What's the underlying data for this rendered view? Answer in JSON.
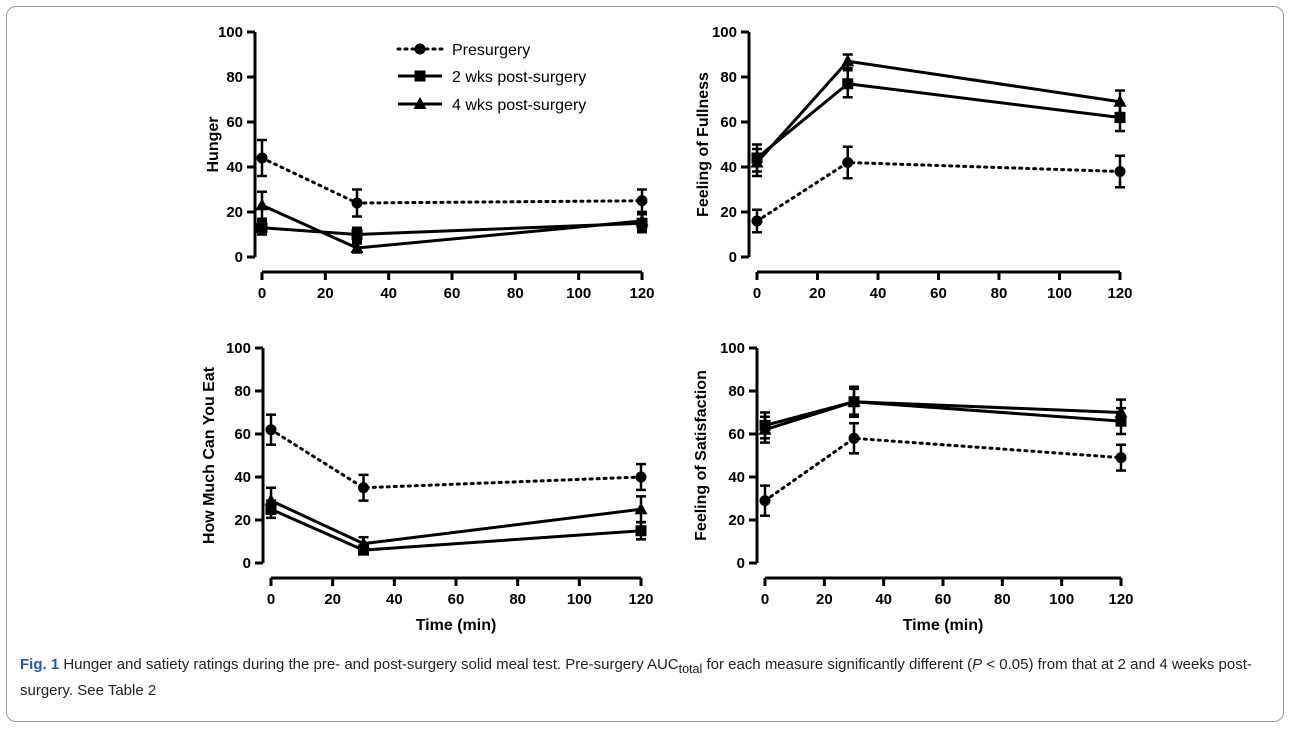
{
  "chart_data": [
    {
      "type": "line",
      "ylabel": "Hunger",
      "xlabel": "",
      "x": [
        0,
        30,
        120
      ],
      "xlim": [
        0,
        120
      ],
      "ylim": [
        0,
        100
      ],
      "xticks": [
        "0",
        "20",
        "40",
        "60",
        "80",
        "100",
        "120"
      ],
      "yticks": [
        "0",
        "20",
        "40",
        "60",
        "80",
        "100"
      ],
      "legend_position": "top-right",
      "series": [
        {
          "name": "Presurgery",
          "marker": "circle",
          "style": "dotted",
          "values": [
            44,
            24,
            25
          ],
          "errors": [
            8,
            6,
            5
          ]
        },
        {
          "name": "2 wks post-surgery",
          "marker": "square",
          "style": "solid",
          "values": [
            13,
            10,
            15
          ],
          "errors": [
            3,
            3,
            4
          ]
        },
        {
          "name": "4 wks post-surgery",
          "marker": "triangle",
          "style": "solid",
          "values": [
            23,
            4,
            16
          ],
          "errors": [
            6,
            2,
            4
          ]
        }
      ]
    },
    {
      "type": "line",
      "ylabel": "Feeling of Fullness",
      "xlabel": "",
      "x": [
        0,
        30,
        120
      ],
      "xlim": [
        0,
        120
      ],
      "ylim": [
        0,
        100
      ],
      "xticks": [
        "0",
        "20",
        "40",
        "60",
        "80",
        "100",
        "120"
      ],
      "yticks": [
        "0",
        "20",
        "40",
        "60",
        "80",
        "100"
      ],
      "series": [
        {
          "name": "Presurgery",
          "marker": "circle",
          "style": "dotted",
          "values": [
            16,
            42,
            38
          ],
          "errors": [
            5,
            7,
            7
          ]
        },
        {
          "name": "2 wks post-surgery",
          "marker": "square",
          "style": "solid",
          "values": [
            44,
            77,
            62
          ],
          "errors": [
            6,
            6,
            6
          ]
        },
        {
          "name": "4 wks post-surgery",
          "marker": "triangle",
          "style": "solid",
          "values": [
            42,
            87,
            69
          ],
          "errors": [
            6,
            3,
            5
          ]
        }
      ]
    },
    {
      "type": "line",
      "ylabel": "How Much Can You Eat",
      "xlabel": "Time (min)",
      "x": [
        0,
        30,
        120
      ],
      "xlim": [
        0,
        120
      ],
      "ylim": [
        0,
        100
      ],
      "xticks": [
        "0",
        "20",
        "40",
        "60",
        "80",
        "100",
        "120"
      ],
      "yticks": [
        "0",
        "20",
        "40",
        "60",
        "80",
        "100"
      ],
      "series": [
        {
          "name": "Presurgery",
          "marker": "circle",
          "style": "dotted",
          "values": [
            62,
            35,
            40
          ],
          "errors": [
            7,
            6,
            6
          ]
        },
        {
          "name": "2 wks post-surgery",
          "marker": "square",
          "style": "solid",
          "values": [
            25,
            6,
            15
          ],
          "errors": [
            4,
            2,
            4
          ]
        },
        {
          "name": "4 wks post-surgery",
          "marker": "triangle",
          "style": "solid",
          "values": [
            29,
            9,
            25
          ],
          "errors": [
            6,
            3,
            6
          ]
        }
      ]
    },
    {
      "type": "line",
      "ylabel": "Feeling of Satisfaction",
      "xlabel": "Time (min)",
      "x": [
        0,
        30,
        120
      ],
      "xlim": [
        0,
        120
      ],
      "ylim": [
        0,
        100
      ],
      "xticks": [
        "0",
        "20",
        "40",
        "60",
        "80",
        "100",
        "120"
      ],
      "yticks": [
        "0",
        "20",
        "40",
        "60",
        "80",
        "100"
      ],
      "series": [
        {
          "name": "Presurgery",
          "marker": "circle",
          "style": "dotted",
          "values": [
            29,
            58,
            49
          ],
          "errors": [
            7,
            7,
            6
          ]
        },
        {
          "name": "2 wks post-surgery",
          "marker": "square",
          "style": "solid",
          "values": [
            64,
            75,
            66
          ],
          "errors": [
            6,
            7,
            6
          ]
        },
        {
          "name": "4 wks post-surgery",
          "marker": "triangle",
          "style": "solid",
          "values": [
            62,
            75,
            70
          ],
          "errors": [
            6,
            6,
            6
          ]
        }
      ]
    }
  ],
  "caption": {
    "label": "Fig. 1",
    "text_1": " Hunger and satiety ratings during the pre- and post-surgery solid meal test. Pre-surgery AUC",
    "subscript": "total",
    "text_2": " for each measure significantly different (",
    "p": "P",
    "text_3": " < 0.05) from that at 2 and 4 weeks post-surgery. See Table 2"
  }
}
